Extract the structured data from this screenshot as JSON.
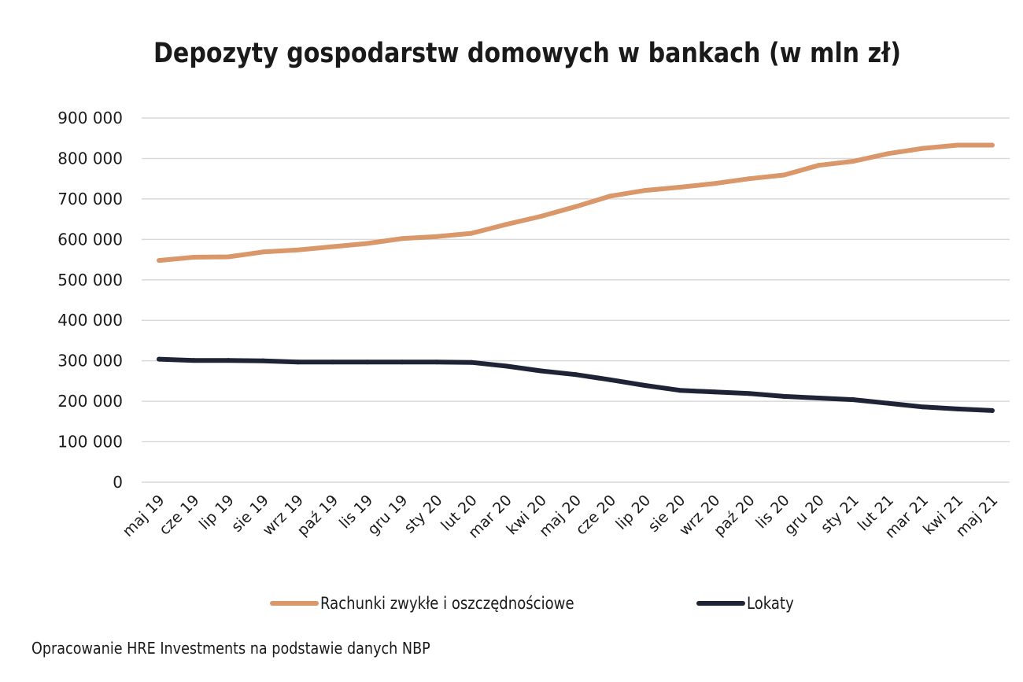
{
  "source_note": "Opracowanie HRE Investments na podstawie danych NBP",
  "chart_data": {
    "type": "line",
    "title": "Depozyty gospodarstw domowych w bankach (w mln zł)",
    "xlabel": "",
    "ylabel": "",
    "ylim": [
      0,
      900000
    ],
    "yticks": [
      0,
      100000,
      200000,
      300000,
      400000,
      500000,
      600000,
      700000,
      800000,
      900000
    ],
    "ytick_labels": [
      "0",
      "100 000",
      "200 000",
      "300 000",
      "400 000",
      "500 000",
      "600 000",
      "700 000",
      "800 000",
      "900 000"
    ],
    "grid": true,
    "legend_position": "bottom",
    "categories": [
      "maj 19",
      "cze 19",
      "lip 19",
      "sie 19",
      "wrz 19",
      "paź 19",
      "lis 19",
      "gru 19",
      "sty 20",
      "lut 20",
      "mar 20",
      "kwi 20",
      "maj 20",
      "cze 20",
      "lip 20",
      "sie 20",
      "wrz 20",
      "paź 20",
      "lis 20",
      "gru 20",
      "sty 21",
      "lut 21",
      "mar 21",
      "kwi 21",
      "maj 21"
    ],
    "series": [
      {
        "name": "Rachunki zwykłe i oszczędnościowe",
        "color": "#d9976a",
        "values": [
          548000,
          556000,
          557000,
          569000,
          574000,
          582000,
          590000,
          602000,
          607000,
          615000,
          637000,
          657000,
          681000,
          707000,
          721000,
          729000,
          738000,
          750000,
          759000,
          783000,
          793000,
          812000,
          825000,
          833000,
          833000
        ]
      },
      {
        "name": "Lokaty",
        "color": "#1f2336",
        "values": [
          304000,
          301000,
          301000,
          300000,
          297000,
          297000,
          297000,
          297000,
          297000,
          296000,
          287000,
          275000,
          266000,
          253000,
          239000,
          227000,
          223000,
          219000,
          212000,
          208000,
          204000,
          195000,
          186000,
          181000,
          177000
        ]
      }
    ]
  }
}
